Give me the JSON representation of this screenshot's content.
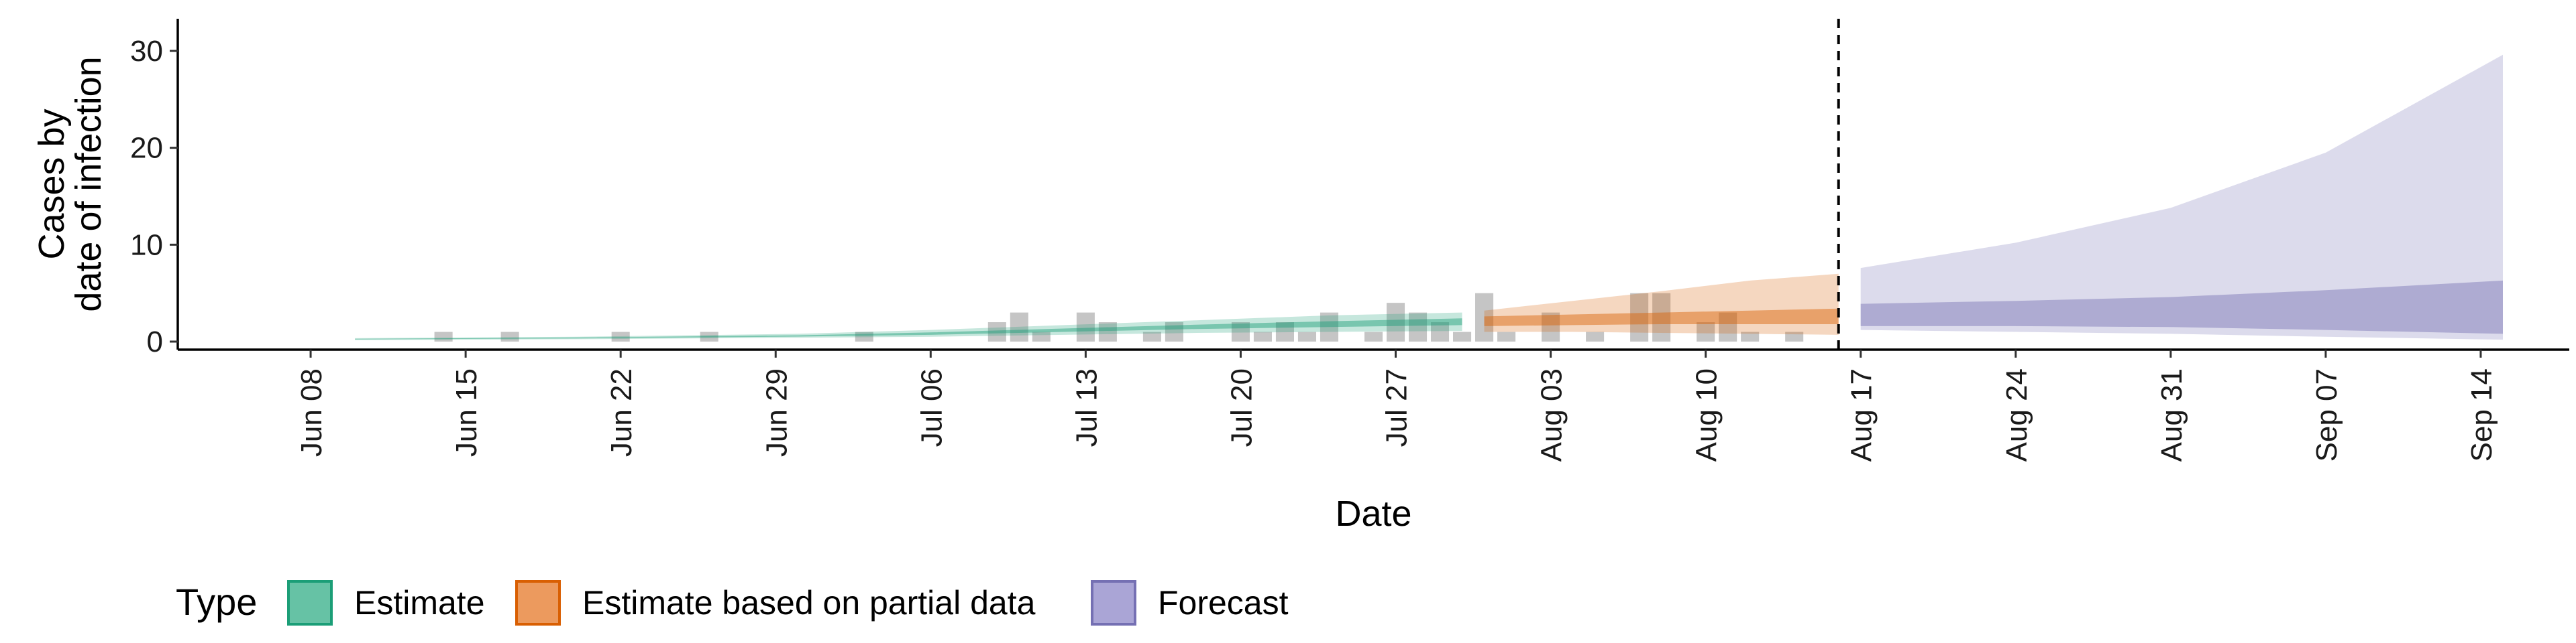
{
  "chart_data": {
    "type": "area",
    "xlabel": "Date",
    "ylabel_lines": [
      "Cases by",
      "date of infection"
    ],
    "ylim": [
      0,
      30
    ],
    "yticks": [
      0,
      10,
      20,
      30
    ],
    "x_axis_type": "date",
    "xlim": [
      "2020-06-02",
      "2020-09-18"
    ],
    "xticks": [
      {
        "date": "2020-06-08",
        "label": "Jun 08"
      },
      {
        "date": "2020-06-15",
        "label": "Jun 15"
      },
      {
        "date": "2020-06-22",
        "label": "Jun 22"
      },
      {
        "date": "2020-06-29",
        "label": "Jun 29"
      },
      {
        "date": "2020-07-06",
        "label": "Jul 06"
      },
      {
        "date": "2020-07-13",
        "label": "Jul 13"
      },
      {
        "date": "2020-07-20",
        "label": "Jul 20"
      },
      {
        "date": "2020-07-27",
        "label": "Jul 27"
      },
      {
        "date": "2020-08-03",
        "label": "Aug 03"
      },
      {
        "date": "2020-08-10",
        "label": "Aug 10"
      },
      {
        "date": "2020-08-17",
        "label": "Aug 17"
      },
      {
        "date": "2020-08-24",
        "label": "Aug 24"
      },
      {
        "date": "2020-08-31",
        "label": "Aug 31"
      },
      {
        "date": "2020-09-07",
        "label": "Sep 07"
      },
      {
        "date": "2020-09-14",
        "label": "Sep 14"
      }
    ],
    "vline_date": "2020-08-16",
    "grid": false,
    "legend": {
      "title": "Type",
      "position": "bottom-left",
      "entries": [
        {
          "label": "Estimate",
          "fill": "#66c2a5",
          "stroke": "#1b9e77"
        },
        {
          "label": "Estimate based on partial data",
          "fill": "#ec9a5e",
          "stroke": "#d95f02"
        },
        {
          "label": "Forecast",
          "fill": "#aaa5d6",
          "stroke": "#7570b3"
        }
      ]
    },
    "bars": {
      "color": "#9e9e9e",
      "opacity": 0.6,
      "data": [
        {
          "date": "2020-06-14",
          "value": 1
        },
        {
          "date": "2020-06-17",
          "value": 1
        },
        {
          "date": "2020-06-22",
          "value": 1
        },
        {
          "date": "2020-06-26",
          "value": 1
        },
        {
          "date": "2020-07-03",
          "value": 1
        },
        {
          "date": "2020-07-09",
          "value": 2
        },
        {
          "date": "2020-07-10",
          "value": 3
        },
        {
          "date": "2020-07-11",
          "value": 1
        },
        {
          "date": "2020-07-13",
          "value": 3
        },
        {
          "date": "2020-07-14",
          "value": 2
        },
        {
          "date": "2020-07-16",
          "value": 1
        },
        {
          "date": "2020-07-17",
          "value": 2
        },
        {
          "date": "2020-07-20",
          "value": 2
        },
        {
          "date": "2020-07-21",
          "value": 1
        },
        {
          "date": "2020-07-22",
          "value": 2
        },
        {
          "date": "2020-07-23",
          "value": 1
        },
        {
          "date": "2020-07-24",
          "value": 3
        },
        {
          "date": "2020-07-26",
          "value": 1
        },
        {
          "date": "2020-07-27",
          "value": 4
        },
        {
          "date": "2020-07-28",
          "value": 3
        },
        {
          "date": "2020-07-29",
          "value": 2
        },
        {
          "date": "2020-07-30",
          "value": 1
        },
        {
          "date": "2020-07-31",
          "value": 5
        },
        {
          "date": "2020-08-01",
          "value": 1
        },
        {
          "date": "2020-08-03",
          "value": 3
        },
        {
          "date": "2020-08-05",
          "value": 1
        },
        {
          "date": "2020-08-07",
          "value": 5
        },
        {
          "date": "2020-08-08",
          "value": 5
        },
        {
          "date": "2020-08-10",
          "value": 2
        },
        {
          "date": "2020-08-11",
          "value": 3
        },
        {
          "date": "2020-08-12",
          "value": 1
        },
        {
          "date": "2020-08-14",
          "value": 1
        }
      ]
    },
    "series": [
      {
        "type": "Estimate",
        "fill": "#1b9e77",
        "outer": [
          {
            "date": "2020-06-10",
            "lower": 0.15,
            "upper": 0.35
          },
          {
            "date": "2020-06-20",
            "lower": 0.25,
            "upper": 0.5
          },
          {
            "date": "2020-06-30",
            "lower": 0.4,
            "upper": 0.8
          },
          {
            "date": "2020-07-06",
            "lower": 0.5,
            "upper": 1.2
          },
          {
            "date": "2020-07-12",
            "lower": 0.7,
            "upper": 1.7
          },
          {
            "date": "2020-07-18",
            "lower": 0.9,
            "upper": 2.2
          },
          {
            "date": "2020-07-24",
            "lower": 1.0,
            "upper": 2.7
          },
          {
            "date": "2020-07-30",
            "lower": 1.1,
            "upper": 3.0
          }
        ],
        "inner": [
          {
            "date": "2020-06-10",
            "lower": 0.22,
            "upper": 0.28
          },
          {
            "date": "2020-06-20",
            "lower": 0.33,
            "upper": 0.42
          },
          {
            "date": "2020-06-30",
            "lower": 0.52,
            "upper": 0.65
          },
          {
            "date": "2020-07-06",
            "lower": 0.7,
            "upper": 0.95
          },
          {
            "date": "2020-07-12",
            "lower": 1.0,
            "upper": 1.35
          },
          {
            "date": "2020-07-18",
            "lower": 1.3,
            "upper": 1.75
          },
          {
            "date": "2020-07-24",
            "lower": 1.5,
            "upper": 2.1
          },
          {
            "date": "2020-07-30",
            "lower": 1.7,
            "upper": 2.4
          }
        ]
      },
      {
        "type": "Estimate based on partial data",
        "fill": "#d95f02",
        "outer": [
          {
            "date": "2020-07-31",
            "lower": 1.0,
            "upper": 3.2
          },
          {
            "date": "2020-08-04",
            "lower": 1.0,
            "upper": 4.2
          },
          {
            "date": "2020-08-08",
            "lower": 0.9,
            "upper": 5.2
          },
          {
            "date": "2020-08-12",
            "lower": 0.8,
            "upper": 6.3
          },
          {
            "date": "2020-08-16",
            "lower": 0.7,
            "upper": 7.0
          }
        ],
        "inner": [
          {
            "date": "2020-07-31",
            "lower": 1.6,
            "upper": 2.6
          },
          {
            "date": "2020-08-04",
            "lower": 1.7,
            "upper": 2.8
          },
          {
            "date": "2020-08-08",
            "lower": 1.8,
            "upper": 3.0
          },
          {
            "date": "2020-08-12",
            "lower": 1.8,
            "upper": 3.2
          },
          {
            "date": "2020-08-16",
            "lower": 1.8,
            "upper": 3.4
          }
        ]
      },
      {
        "type": "Forecast",
        "fill": "#7570b3",
        "outer": [
          {
            "date": "2020-08-17",
            "lower": 1.2,
            "upper": 7.6
          },
          {
            "date": "2020-08-24",
            "lower": 1.0,
            "upper": 10.2
          },
          {
            "date": "2020-08-31",
            "lower": 0.8,
            "upper": 13.8
          },
          {
            "date": "2020-09-07",
            "lower": 0.5,
            "upper": 19.5
          },
          {
            "date": "2020-09-15",
            "lower": 0.2,
            "upper": 29.6
          }
        ],
        "inner": [
          {
            "date": "2020-08-17",
            "lower": 1.6,
            "upper": 3.9
          },
          {
            "date": "2020-08-24",
            "lower": 1.6,
            "upper": 4.2
          },
          {
            "date": "2020-08-31",
            "lower": 1.5,
            "upper": 4.6
          },
          {
            "date": "2020-09-07",
            "lower": 1.2,
            "upper": 5.3
          },
          {
            "date": "2020-09-15",
            "lower": 0.8,
            "upper": 6.3
          }
        ]
      }
    ]
  }
}
